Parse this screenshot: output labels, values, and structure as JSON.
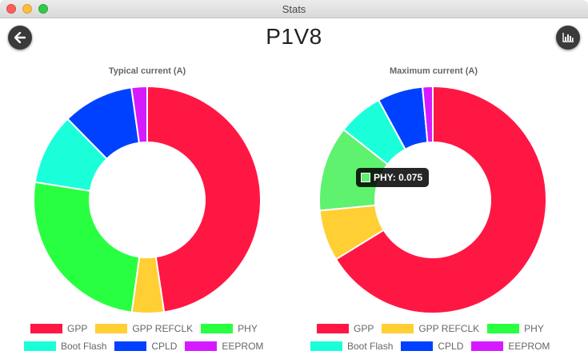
{
  "window": {
    "title": "Stats"
  },
  "page": {
    "title": "P1V8"
  },
  "icons": {
    "back": "arrow-left-icon",
    "stats": "bar-chart-icon"
  },
  "colors": {
    "gpp": "#ff1744",
    "gpp_refclk": "#ffcf33",
    "phy": "#29ff41",
    "boot_flash": "#1affda",
    "cpld": "#0041ff",
    "eeprom": "#d61aff",
    "phy_highlight": "#5ff26f"
  },
  "chart_data": [
    {
      "type": "pie",
      "title": "Typical current (A)",
      "categories": [
        "GPP",
        "GPP REFCLK",
        "PHY",
        "Boot Flash",
        "CPLD",
        "EEPROM"
      ],
      "values": [
        0.47,
        0.045,
        0.25,
        0.1,
        0.1,
        0.022
      ],
      "legend": "bottom"
    },
    {
      "type": "pie",
      "title": "Maximum current (A)",
      "categories": [
        "GPP",
        "GPP REFCLK",
        "PHY",
        "Boot Flash",
        "CPLD",
        "EEPROM"
      ],
      "values": [
        0.41,
        0.045,
        0.075,
        0.04,
        0.04,
        0.009
      ],
      "legend": "bottom",
      "tooltip": {
        "category": "PHY",
        "value": "0.075"
      }
    }
  ],
  "tooltip": {
    "text": "PHY: 0.075"
  }
}
